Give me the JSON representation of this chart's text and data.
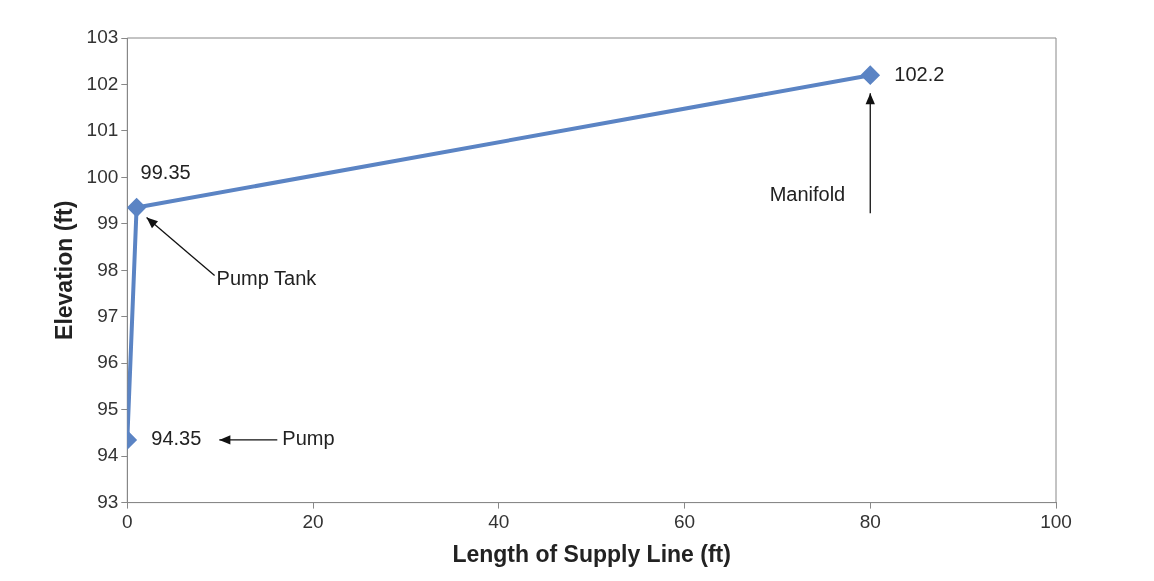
{
  "chart_data": {
    "type": "line",
    "xlabel": "Length of Supply Line (ft)",
    "ylabel": "Elevation (ft)",
    "x": [
      0,
      1,
      80
    ],
    "series": [
      {
        "color": "#5b84c4",
        "values": [
          94.35,
          99.35,
          102.2
        ]
      }
    ],
    "data_labels": true,
    "annotations": [
      "Pump",
      "Pump Tank",
      "Manifold"
    ],
    "xlim": [
      0,
      100
    ],
    "xticks": [
      0,
      20,
      40,
      60,
      80,
      100
    ],
    "ylim": [
      93,
      103
    ],
    "yticks": [
      93,
      94,
      95,
      96,
      97,
      98,
      99,
      100,
      101,
      102,
      103
    ],
    "grid": false,
    "legend": false,
    "marker": "diamond",
    "line_style": "solid"
  }
}
